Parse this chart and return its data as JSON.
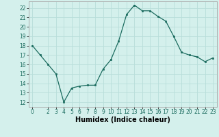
{
  "x": [
    0,
    1,
    2,
    3,
    4,
    5,
    6,
    7,
    8,
    9,
    10,
    11,
    12,
    13,
    14,
    15,
    16,
    17,
    18,
    19,
    20,
    21,
    22,
    23
  ],
  "y": [
    18,
    17,
    16,
    15,
    12,
    13.5,
    13.7,
    13.8,
    13.8,
    15.5,
    16.5,
    18.5,
    21.3,
    22.3,
    21.7,
    21.7,
    21.1,
    20.6,
    19.0,
    17.3,
    17.0,
    16.8,
    16.3,
    16.7
  ],
  "line_color": "#1a6b5e",
  "marker_color": "#1a6b5e",
  "bg_color": "#d4f0ec",
  "grid_color": "#b8deda",
  "xlabel": "Humidex (Indice chaleur)",
  "ylim": [
    11.5,
    22.7
  ],
  "xlim": [
    -0.5,
    23.5
  ],
  "yticks": [
    12,
    13,
    14,
    15,
    16,
    17,
    18,
    19,
    20,
    21,
    22
  ],
  "xticks": [
    0,
    2,
    3,
    4,
    5,
    6,
    7,
    8,
    9,
    10,
    11,
    12,
    13,
    14,
    15,
    16,
    17,
    18,
    19,
    20,
    21,
    22,
    23
  ],
  "tick_fontsize": 5.5,
  "label_fontsize": 7.0
}
